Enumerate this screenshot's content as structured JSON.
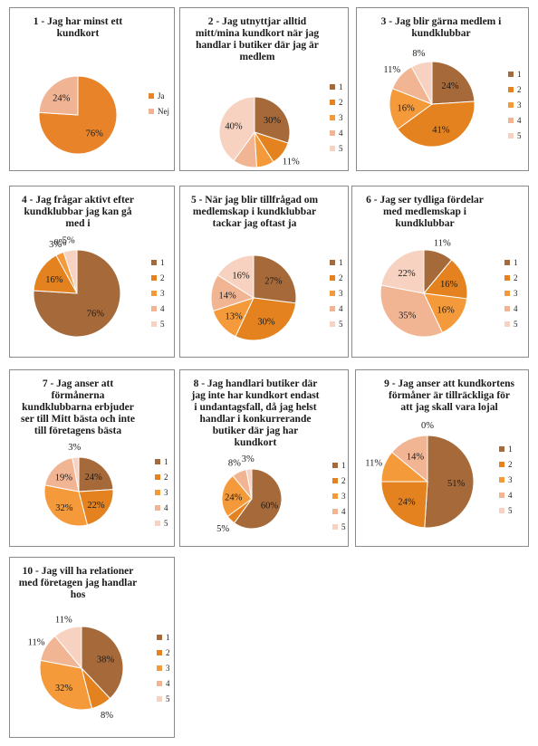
{
  "colors": {
    "answer_1": "#A6693A",
    "answer_2": "#E3821F",
    "answer_3": "#F59A3A",
    "answer_4": "#F2B594",
    "answer_5": "#F7D2C0",
    "ja": "#E8832A",
    "nej": "#F0B394",
    "border": "#8A8A8A"
  },
  "chart_data": [
    {
      "type": "pie",
      "title_lines": [
        "1 - Jag har minst ett",
        "kundkort"
      ],
      "categories": [
        "Ja",
        "Nej"
      ],
      "values": [
        76,
        24
      ],
      "value_labels": [
        "76%",
        "24%"
      ],
      "legend": "right"
    },
    {
      "type": "pie",
      "title_lines": [
        "2 - Jag utnyttjar alltid",
        "mitt/mina kundkort när jag",
        "handlar i butiker där jag är",
        "medlem"
      ],
      "categories": [
        "1",
        "2",
        "3",
        "4",
        "5"
      ],
      "values": [
        30,
        11,
        8,
        11,
        40
      ],
      "value_labels": [
        "30%",
        "11%",
        "8%",
        "11%",
        "40%"
      ],
      "legend": "right"
    },
    {
      "type": "pie",
      "title_lines": [
        "3 - Jag blir gärna medlem i",
        "kundklubbar"
      ],
      "categories": [
        "1",
        "2",
        "3",
        "4",
        "5"
      ],
      "values": [
        24,
        41,
        16,
        11,
        8
      ],
      "value_labels": [
        "24%",
        "41%",
        "16%",
        "11%",
        "8%"
      ],
      "legend": "right"
    },
    {
      "type": "pie",
      "title_lines": [
        "4 - Jag frågar aktivt efter",
        "kundklubbar jag kan gå",
        "med i"
      ],
      "categories": [
        "1",
        "2",
        "3",
        "4",
        "5"
      ],
      "values": [
        76,
        16,
        3,
        0,
        5
      ],
      "value_labels": [
        "76%",
        "16%",
        "3%",
        "0%",
        "5%"
      ],
      "legend": "right"
    },
    {
      "type": "pie",
      "title_lines": [
        "5 - När jag blir tillfrågad om",
        "medlemskap i kundklubbar",
        "tackar jag oftast ja"
      ],
      "categories": [
        "1",
        "2",
        "3",
        "4",
        "5"
      ],
      "values": [
        27,
        30,
        13,
        14,
        16
      ],
      "value_labels": [
        "27%",
        "30%",
        "13%",
        "14%",
        "16%"
      ],
      "legend": "right"
    },
    {
      "type": "pie",
      "title_lines": [
        "6 - Jag ser tydliga fördelar",
        "med medlemskap i",
        "kundklubbar"
      ],
      "categories": [
        "1",
        "2",
        "3",
        "4",
        "5"
      ],
      "values": [
        11,
        16,
        16,
        35,
        22
      ],
      "value_labels": [
        "11%",
        "16%",
        "16%",
        "35%",
        "22%"
      ],
      "legend": "right"
    },
    {
      "type": "pie",
      "title_lines": [
        "7 - Jag anser att",
        "förmånerna",
        "kundklubbarna erbjuder",
        "ser till Mitt bästa och inte",
        "till företagens bästa"
      ],
      "categories": [
        "1",
        "2",
        "3",
        "4",
        "5"
      ],
      "values": [
        24,
        22,
        32,
        19,
        3
      ],
      "value_labels": [
        "24%",
        "22%",
        "32%",
        "19%",
        "3%"
      ],
      "legend": "right"
    },
    {
      "type": "pie",
      "title_lines": [
        "8 - Jag handlari butiker där",
        "jag inte har kundkort endast",
        "i undantagsfall, då jag helst",
        "handlar i konkurrerande",
        "butiker där jag har",
        "kundkort"
      ],
      "categories": [
        "1",
        "2",
        "3",
        "4",
        "5"
      ],
      "values": [
        60,
        5,
        24,
        8,
        3
      ],
      "value_labels": [
        "60%",
        "5%",
        "24%",
        "8%",
        "3%"
      ],
      "legend": "right"
    },
    {
      "type": "pie",
      "title_lines": [
        "9 - Jag anser att kundkortens",
        "förmåner är tillräckliga för",
        "att jag skall vara lojal"
      ],
      "categories": [
        "1",
        "2",
        "3",
        "4",
        "5"
      ],
      "values": [
        51,
        24,
        11,
        14,
        0
      ],
      "value_labels": [
        "51%",
        "24%",
        "11%",
        "14%",
        "0%"
      ],
      "legend": "right"
    },
    {
      "type": "pie",
      "title_lines": [
        "10 - Jag vill ha relationer",
        "med företagen jag handlar",
        "hos"
      ],
      "categories": [
        "1",
        "2",
        "3",
        "4",
        "5"
      ],
      "values": [
        38,
        8,
        32,
        11,
        11
      ],
      "value_labels": [
        "38%",
        "8%",
        "32%",
        "11%",
        "11%"
      ],
      "legend": "right"
    }
  ]
}
